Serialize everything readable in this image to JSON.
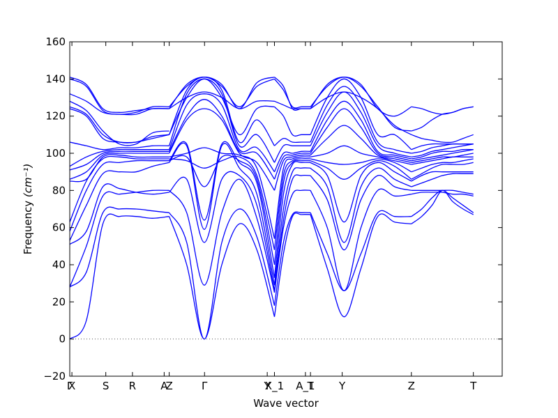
{
  "chart_data": {
    "type": "line",
    "xlabel": "Wave vector",
    "ylabel": "Frequency",
    "ylabel_unit": "(cm⁻¹)",
    "ylim": [
      -20,
      160
    ],
    "yticks": [
      -20,
      0,
      20,
      40,
      60,
      80,
      100,
      120,
      140,
      160
    ],
    "xlim": [
      0,
      6
    ],
    "high_symmetry_points": [
      {
        "label": "Γ",
        "x": 0.0
      },
      {
        "label": "X",
        "x": 0.03
      },
      {
        "label": "S",
        "x": 0.5
      },
      {
        "label": "R",
        "x": 0.87
      },
      {
        "label": "A",
        "x": 1.31
      },
      {
        "label": "Z",
        "x": 1.38
      },
      {
        "label": "Γ",
        "x": 1.87
      },
      {
        "label": "Y",
        "x": 2.74
      },
      {
        "label": "X_1",
        "x": 2.84
      },
      {
        "label": "A_1",
        "x": 3.27
      },
      {
        "label": "T",
        "x": 3.34
      },
      {
        "label": "Y",
        "x": 3.78
      },
      {
        "label": "Z",
        "x": 4.74
      },
      {
        "label": "T",
        "x": 5.6
      }
    ],
    "zero_line": true,
    "line_color": "#0000ff",
    "segments": [
      {
        "x0": 0.0,
        "x1": 1.38,
        "branches": [
          [
            0,
            10,
            62,
            66,
            66,
            65,
            66
          ],
          [
            28,
            36,
            68,
            70,
            70,
            69,
            68
          ],
          [
            28,
            50,
            77,
            78,
            79,
            80,
            80
          ],
          [
            51,
            58,
            82,
            81,
            79,
            78,
            79
          ],
          [
            53,
            72,
            89,
            90,
            90,
            93,
            95
          ],
          [
            58,
            80,
            94,
            95,
            96,
            96,
            96
          ],
          [
            63,
            85,
            97,
            98,
            97,
            97,
            97
          ],
          [
            85,
            86,
            98,
            99,
            98,
            98,
            98
          ],
          [
            86,
            90,
            99,
            100,
            100,
            100,
            100
          ],
          [
            91,
            94,
            100,
            101,
            101,
            101,
            101
          ],
          [
            93,
            98,
            101,
            102,
            102,
            102,
            102
          ],
          [
            106,
            104,
            102,
            103,
            103,
            104,
            104
          ],
          [
            124,
            120,
            108,
            106,
            106,
            108,
            110
          ],
          [
            125,
            121,
            110,
            106,
            106,
            109,
            110
          ],
          [
            128,
            123,
            112,
            105,
            105,
            111,
            112
          ],
          [
            132,
            128,
            122,
            121,
            121,
            124,
            124
          ],
          [
            140,
            136,
            123,
            121,
            122,
            125,
            125
          ],
          [
            141,
            137,
            124,
            122,
            123,
            124,
            124
          ]
        ]
      },
      {
        "x0": 1.38,
        "x1": 2.84,
        "branches": [
          [
            66,
            40,
            0,
            40,
            62,
            48,
            12
          ],
          [
            68,
            52,
            0,
            52,
            70,
            55,
            18
          ],
          [
            80,
            68,
            29,
            68,
            86,
            65,
            25
          ],
          [
            79,
            86,
            52,
            86,
            88,
            72,
            26
          ],
          [
            95,
            104,
            59,
            104,
            92,
            78,
            29
          ],
          [
            96,
            105,
            64,
            105,
            95,
            84,
            33
          ],
          [
            96,
            98,
            82,
            98,
            96,
            86,
            40
          ],
          [
            97,
            96,
            92,
            96,
            98,
            88,
            48
          ],
          [
            98,
            100,
            103,
            100,
            99,
            92,
            54
          ],
          [
            100,
            118,
            124,
            118,
            100,
            95,
            80
          ],
          [
            101,
            120,
            129,
            120,
            101,
            100,
            86
          ],
          [
            102,
            126,
            132,
            126,
            102,
            103,
            90
          ],
          [
            104,
            132,
            140,
            132,
            104,
            110,
            95
          ],
          [
            110,
            134,
            141,
            134,
            106,
            118,
            104
          ],
          [
            110,
            130,
            140,
            130,
            110,
            124,
            125
          ],
          [
            124,
            130,
            133,
            130,
            124,
            128,
            128
          ],
          [
            125,
            136,
            141,
            136,
            125,
            136,
            140
          ],
          [
            124,
            137,
            141,
            137,
            124,
            138,
            141
          ]
        ]
      },
      {
        "x0": 2.84,
        "x1": 3.34,
        "branches": [
          [
            12,
            46,
            66,
            67,
            67
          ],
          [
            18,
            52,
            67,
            68,
            68
          ],
          [
            25,
            60,
            78,
            80,
            80
          ],
          [
            26,
            64,
            86,
            88,
            88
          ],
          [
            29,
            70,
            90,
            92,
            92
          ],
          [
            33,
            78,
            94,
            95,
            95
          ],
          [
            40,
            84,
            95,
            96,
            96
          ],
          [
            48,
            88,
            96,
            97,
            97
          ],
          [
            54,
            92,
            97,
            98,
            98
          ],
          [
            80,
            96,
            98,
            99,
            99
          ],
          [
            86,
            98,
            99,
            100,
            100
          ],
          [
            90,
            100,
            100,
            101,
            101
          ],
          [
            95,
            104,
            104,
            104,
            104
          ],
          [
            104,
            108,
            106,
            106,
            106
          ],
          [
            125,
            120,
            110,
            110,
            110
          ],
          [
            128,
            126,
            124,
            124,
            124
          ],
          [
            140,
            134,
            125,
            125,
            125
          ],
          [
            141,
            136,
            124,
            124,
            124
          ]
        ]
      },
      {
        "x0": 3.34,
        "x1": 4.74,
        "branches": [
          [
            67,
            38,
            12,
            38,
            66,
            63,
            62
          ],
          [
            68,
            46,
            26,
            46,
            68,
            66,
            66
          ],
          [
            80,
            60,
            26,
            60,
            80,
            77,
            78
          ],
          [
            88,
            75,
            48,
            75,
            88,
            82,
            80
          ],
          [
            92,
            82,
            52,
            82,
            92,
            86,
            82
          ],
          [
            95,
            88,
            63,
            88,
            95,
            90,
            85
          ],
          [
            96,
            92,
            86,
            92,
            96,
            93,
            86
          ],
          [
            97,
            95,
            94,
            95,
            97,
            95,
            90
          ],
          [
            98,
            100,
            104,
            100,
            98,
            96,
            94
          ],
          [
            99,
            108,
            115,
            108,
            99,
            97,
            95
          ],
          [
            100,
            114,
            124,
            114,
            100,
            98,
            96
          ],
          [
            101,
            118,
            128,
            118,
            101,
            99,
            97
          ],
          [
            104,
            122,
            133,
            122,
            104,
            100,
            98
          ],
          [
            106,
            126,
            136,
            126,
            106,
            102,
            100
          ],
          [
            110,
            130,
            140,
            130,
            110,
            110,
            102
          ],
          [
            124,
            130,
            133,
            130,
            124,
            115,
            110
          ],
          [
            125,
            136,
            141,
            136,
            125,
            114,
            112
          ],
          [
            124,
            137,
            141,
            137,
            124,
            120,
            125
          ]
        ]
      },
      {
        "x0": 4.74,
        "x1": 5.6,
        "branches": [
          [
            62,
            66,
            72,
            80,
            74,
            70,
            67
          ],
          [
            66,
            70,
            76,
            80,
            76,
            72,
            68
          ],
          [
            78,
            79,
            79,
            79,
            78,
            78,
            77
          ],
          [
            80,
            80,
            80,
            80,
            80,
            79,
            78
          ],
          [
            82,
            84,
            86,
            88,
            89,
            89,
            89
          ],
          [
            85,
            88,
            90,
            90,
            90,
            90,
            90
          ],
          [
            86,
            89,
            92,
            94,
            94,
            94,
            95
          ],
          [
            90,
            92,
            94,
            95,
            95,
            96,
            97
          ],
          [
            94,
            95,
            96,
            97,
            98,
            98,
            98
          ],
          [
            95,
            96,
            97,
            98,
            98,
            99,
            100
          ],
          [
            96,
            97,
            98,
            99,
            100,
            101,
            102
          ],
          [
            97,
            98,
            100,
            101,
            101,
            102,
            102
          ],
          [
            98,
            99,
            101,
            102,
            103,
            104,
            105
          ],
          [
            100,
            101,
            103,
            104,
            105,
            105,
            105
          ],
          [
            102,
            104,
            105,
            105,
            105,
            105,
            105
          ],
          [
            110,
            108,
            107,
            106,
            106,
            108,
            110
          ],
          [
            112,
            114,
            118,
            121,
            122,
            124,
            125
          ],
          [
            125,
            124,
            122,
            121,
            122,
            124,
            125
          ]
        ]
      }
    ]
  }
}
